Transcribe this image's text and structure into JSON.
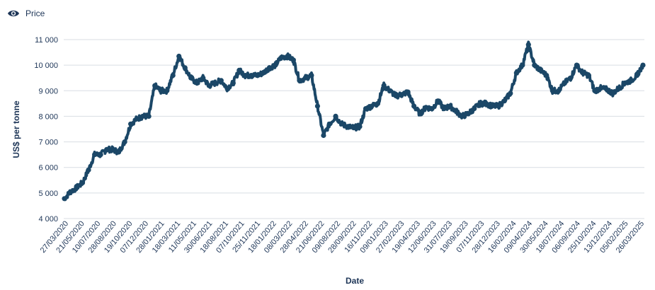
{
  "legend": {
    "label": "Price",
    "icon": "eye-icon"
  },
  "colors": {
    "series": "#1b4767",
    "grid": "#d8dde3",
    "text": "#1d3557",
    "axis_title": "#1d3557"
  },
  "chart_data": {
    "type": "line",
    "xlabel": "Date",
    "ylabel": "US$ per tonne",
    "ylim": [
      4000,
      11000
    ],
    "yticks": [
      4000,
      5000,
      6000,
      7000,
      8000,
      9000,
      10000,
      11000
    ],
    "ytick_labels": [
      "4 000",
      "5 000",
      "6 000",
      "7 000",
      "8 000",
      "9 000",
      "10 000",
      "11 000"
    ],
    "x_tick_labels": [
      "27/03/2020",
      "21/05/2020",
      "10/07/2020",
      "28/08/2020",
      "19/10/2020",
      "07/12/2020",
      "28/01/2021",
      "18/03/2021",
      "11/05/2021",
      "30/06/2021",
      "18/08/2021",
      "07/10/2021",
      "25/11/2021",
      "18/01/2022",
      "08/03/2022",
      "28/04/2022",
      "21/06/2022",
      "09/08/2022",
      "28/09/2022",
      "16/11/2022",
      "09/01/2023",
      "27/02/2023",
      "19/04/2023",
      "12/06/2023",
      "31/07/2023",
      "19/09/2023",
      "07/11/2023",
      "28/12/2023",
      "16/02/2024",
      "09/04/2024",
      "30/05/2024",
      "18/07/2024",
      "06/09/2024",
      "25/10/2024",
      "13/12/2024",
      "05/02/2025",
      "26/03/2025"
    ],
    "series": [
      {
        "name": "Price",
        "values": [
          4780,
          5050,
          5200,
          5400,
          5900,
          6500,
          6500,
          6700,
          6700,
          6600,
          7000,
          7700,
          7900,
          8000,
          8000,
          9200,
          9000,
          9000,
          9600,
          10350,
          9900,
          9500,
          9300,
          9500,
          9200,
          9300,
          9400,
          9100,
          9300,
          9800,
          9600,
          9600,
          9600,
          9700,
          9900,
          10000,
          10300,
          10350,
          10200,
          9400,
          9500,
          9600,
          8400,
          7250,
          7700,
          8000,
          7700,
          7600,
          7550,
          7600,
          8300,
          8400,
          8500,
          9200,
          9000,
          8800,
          8850,
          8950,
          8400,
          8100,
          8350,
          8300,
          8600,
          8300,
          8400,
          8200,
          8000,
          8100,
          8300,
          8500,
          8500,
          8400,
          8400,
          8600,
          8900,
          9700,
          10000,
          10800,
          10000,
          9800,
          9600,
          9000,
          9000,
          9300,
          9500,
          10000,
          9700,
          9600,
          9000,
          9100,
          9050,
          8900,
          9100,
          9300,
          9400,
          9600,
          10000
        ]
      }
    ],
    "grid": true,
    "legend_position": "top-left"
  }
}
